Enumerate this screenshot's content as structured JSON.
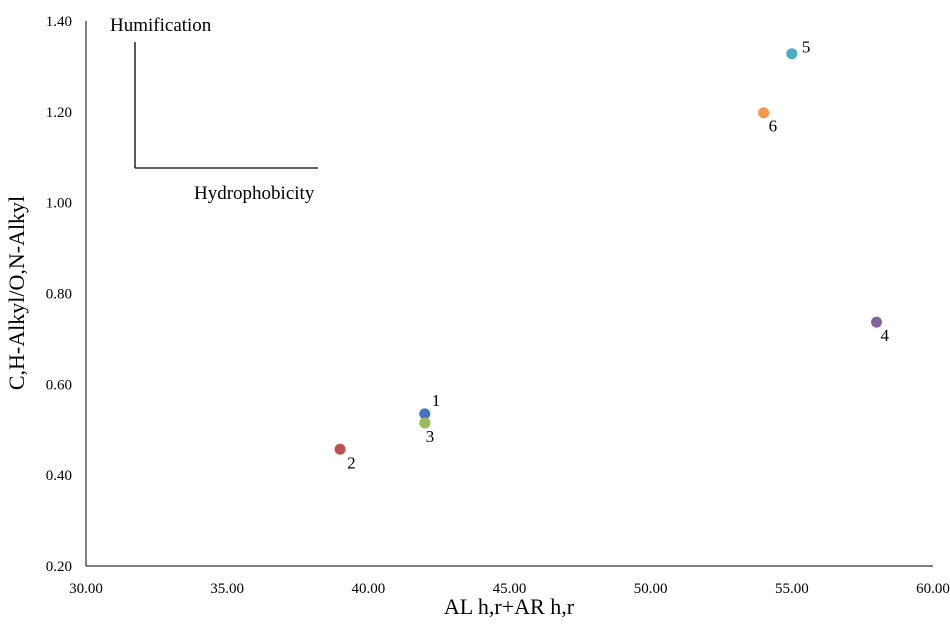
{
  "chart_data": {
    "type": "scatter",
    "title": "",
    "xlabel": "AL h,r+AR h,r",
    "ylabel": "C,H-Alkyl/O,N-Alkyl",
    "xlim": [
      30,
      60
    ],
    "ylim": [
      0.2,
      1.4
    ],
    "x_ticks": [
      30,
      35,
      40,
      45,
      50,
      55,
      60
    ],
    "y_ticks": [
      0.2,
      0.4,
      0.6,
      0.8,
      1.0,
      1.2,
      1.4
    ],
    "x_tick_labels": [
      "30.00",
      "35.00",
      "40.00",
      "45.00",
      "50.00",
      "55.00",
      "60.00"
    ],
    "y_tick_labels": [
      "0.20",
      "0.40",
      "0.60",
      "0.80",
      "1.00",
      "1.20",
      "1.40"
    ],
    "grid": false,
    "legend": "none",
    "points": [
      {
        "label": "1",
        "x": 42.0,
        "y": 0.535,
        "color": "#4472C4"
      },
      {
        "label": "2",
        "x": 39.0,
        "y": 0.457,
        "color": "#C0504D"
      },
      {
        "label": "3",
        "x": 42.0,
        "y": 0.515,
        "color": "#9BBB59"
      },
      {
        "label": "4",
        "x": 58.0,
        "y": 0.737,
        "color": "#8064A2"
      },
      {
        "label": "5",
        "x": 55.0,
        "y": 1.328,
        "color": "#4BACC6"
      },
      {
        "label": "6",
        "x": 54.0,
        "y": 1.198,
        "color": "#F79646"
      }
    ],
    "annotations": {
      "vertical_label": "Humification",
      "horizontal_label": "Hydrophobicity"
    }
  }
}
